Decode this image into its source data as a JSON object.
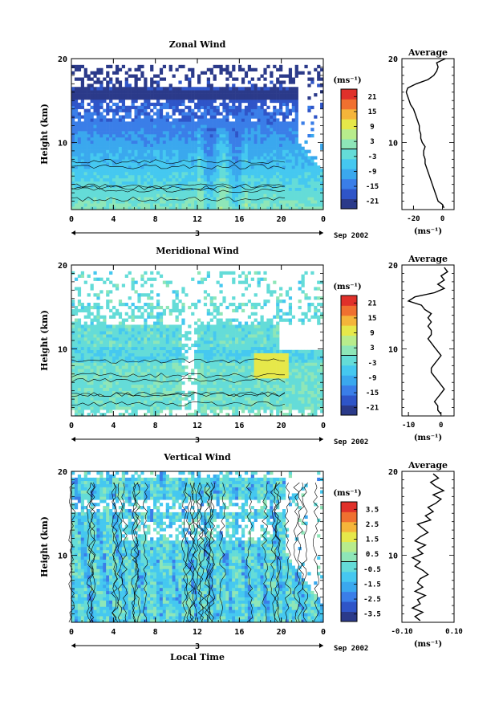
{
  "date_label": "Sep 2002",
  "common_xlabel": "Local Time",
  "chart_data": [
    {
      "type": "heatmap",
      "title": "Zonal Wind",
      "ylabel": "Height (km)",
      "xlim": [
        0,
        24
      ],
      "ylim": [
        2,
        20
      ],
      "xticks": [
        "0",
        "4",
        "8",
        "12",
        "16",
        "20",
        "0"
      ],
      "yticks": [
        "10",
        "20"
      ],
      "day_label": "3",
      "grid": false,
      "colorbar": {
        "unit": "(ms⁻¹)",
        "ticks": [
          "21",
          "15",
          "9",
          "3",
          "-3",
          "-9",
          "-15",
          "-21"
        ],
        "range": [
          -24,
          24
        ]
      },
      "profile_title": "Average",
      "profile_xlabel": "(ms⁻¹)",
      "profile_xticks": [
        "-20",
        "0"
      ],
      "profile_xlim": [
        -28,
        8
      ],
      "profile_yticks": [
        "10",
        "20"
      ],
      "profile": {
        "h": [
          2.2,
          2.6,
          3,
          3.5,
          4,
          4.5,
          5,
          5.5,
          6,
          6.5,
          7,
          7.5,
          8,
          8.5,
          9,
          9.5,
          10,
          10.5,
          11,
          11.5,
          12,
          12.5,
          13,
          13.5,
          14,
          14.5,
          15,
          15.5,
          16,
          16.5,
          17,
          17.5,
          18,
          18.5,
          19,
          19.5,
          20
        ],
        "v": [
          1,
          0,
          -3,
          -4,
          -5,
          -6,
          -7,
          -8,
          -9,
          -10,
          -11,
          -12,
          -12,
          -13,
          -13,
          -12,
          -14,
          -15,
          -15,
          -16,
          -16,
          -17,
          -18,
          -19,
          -20,
          -22,
          -23,
          -24,
          -25,
          -24,
          -18,
          -10,
          -6,
          -4,
          -3,
          -4,
          2
        ]
      },
      "map_seed": 11
    },
    {
      "type": "heatmap",
      "title": "Meridional Wind",
      "ylabel": "Height (km)",
      "xlim": [
        0,
        24
      ],
      "ylim": [
        2,
        20
      ],
      "xticks": [
        "0",
        "4",
        "8",
        "12",
        "16",
        "20",
        "0"
      ],
      "yticks": [
        "10",
        "20"
      ],
      "day_label": "3",
      "grid": false,
      "colorbar": {
        "unit": "(ms⁻¹)",
        "ticks": [
          "21",
          "15",
          "9",
          "3",
          "-3",
          "-9",
          "-15",
          "-21"
        ],
        "range": [
          -24,
          24
        ]
      },
      "profile_title": "Average",
      "profile_xlabel": "(ms⁻¹)",
      "profile_xticks": [
        "-10",
        "0"
      ],
      "profile_xlim": [
        -12,
        4
      ],
      "profile_yticks": [
        "10",
        "20"
      ],
      "profile": {
        "h": [
          2.2,
          2.7,
          3.2,
          3.7,
          4.2,
          4.7,
          5.2,
          5.7,
          6.2,
          6.7,
          7.2,
          7.7,
          8.2,
          8.7,
          9.2,
          9.7,
          10.2,
          10.7,
          11.2,
          11.7,
          12.2,
          12.7,
          13.2,
          13.7,
          14.2,
          14.7,
          15.2,
          15.7,
          16.2,
          16.7,
          17.2,
          17.7,
          18.2,
          18.7,
          19.2,
          19.7
        ],
        "v": [
          0,
          -1,
          -1,
          -2,
          -1,
          0,
          1,
          0,
          -1,
          -2,
          -3,
          -3,
          -2,
          -1,
          0,
          -1,
          -2,
          -3,
          -4,
          -3,
          -3,
          -4,
          -3,
          -4,
          -3,
          -5,
          -6,
          -10,
          -8,
          -2,
          1,
          -1,
          1,
          0,
          2,
          1
        ]
      },
      "map_seed": 23
    },
    {
      "type": "heatmap",
      "title": "Vertical Wind",
      "ylabel": "Height (km)",
      "xlabel": "Local Time",
      "xlim": [
        0,
        24
      ],
      "ylim": [
        2,
        20
      ],
      "xticks": [
        "0",
        "4",
        "8",
        "12",
        "16",
        "20",
        "0"
      ],
      "yticks": [
        "10",
        "20"
      ],
      "day_label": "3",
      "grid": false,
      "colorbar": {
        "unit": "(ms⁻¹)",
        "ticks": [
          "3.5",
          "2.5",
          "1.5",
          "0.5",
          "-0.5",
          "-1.5",
          "-2.5",
          "-3.5"
        ],
        "range": [
          -4,
          4
        ]
      },
      "profile_title": "Average",
      "profile_xlabel": "(ms⁻¹)",
      "profile_xticks": [
        "-0.10",
        "0.10"
      ],
      "profile_xlim": [
        -0.1,
        0.1
      ],
      "profile_yticks": [
        "10",
        "20"
      ],
      "profile": {
        "h": [
          2.2,
          2.7,
          3.2,
          3.7,
          4.2,
          4.7,
          5.2,
          5.7,
          6.2,
          6.7,
          7.2,
          7.7,
          8.2,
          8.7,
          9.2,
          9.7,
          10.2,
          10.7,
          11.2,
          11.7,
          12.2,
          12.7,
          13.2,
          13.7,
          14.2,
          14.7,
          15.2,
          15.7,
          16.2,
          16.7,
          17.2,
          17.7,
          18.2,
          18.7,
          19.2,
          19.7
        ],
        "v": [
          -0.03,
          -0.05,
          -0.02,
          -0.06,
          -0.03,
          -0.04,
          -0.01,
          -0.05,
          -0.02,
          -0.04,
          -0.03,
          0.0,
          -0.02,
          -0.05,
          -0.03,
          -0.06,
          -0.02,
          -0.04,
          -0.01,
          -0.05,
          -0.03,
          0.0,
          -0.02,
          -0.04,
          0.01,
          -0.01,
          0.02,
          0.0,
          0.03,
          0.05,
          0.02,
          0.06,
          0.03,
          0.01,
          0.04,
          0.02
        ]
      },
      "map_seed": 37
    }
  ]
}
